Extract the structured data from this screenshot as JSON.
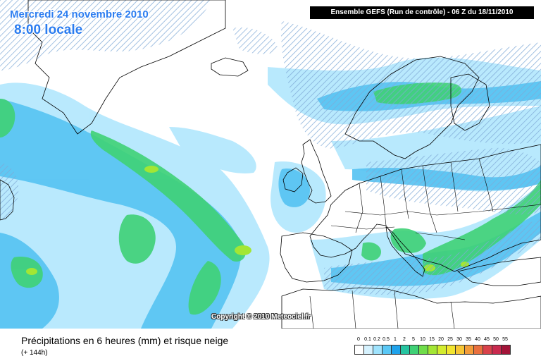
{
  "header": {
    "date": "Mercredi 24 novembre 2010",
    "time": "8:00 locale",
    "run_info": "Ensemble GEFS (Run de contrôle)  -  06 Z du 18/11/2010"
  },
  "copyright": "Copyright © 2010 Meteociel.fr",
  "footer": {
    "field_title": "Précipitations en 6 heures (mm) et risque neige",
    "lead_time": "(+ 144h)"
  },
  "legend": {
    "labels": [
      "0",
      "0.1",
      "0.2",
      "0.5",
      "1",
      "2",
      "5",
      "10",
      "15",
      "20",
      "25",
      "30",
      "35",
      "40",
      "45",
      "50",
      "55"
    ],
    "colors": [
      "#ffffff",
      "#d6f2fe",
      "#9fe3fd",
      "#5ac8f6",
      "#1fa3ec",
      "#25c4a0",
      "#3fd176",
      "#6fdd4a",
      "#a3e634",
      "#d3ec2e",
      "#f2e52f",
      "#f7c635",
      "#f39c3a",
      "#e9703e",
      "#d9424a",
      "#c92a4e",
      "#a31439"
    ]
  },
  "map": {
    "sea_color": "#ffffff",
    "land_border_color": "#000000",
    "snow_hatch_color": "#7fa9d6"
  }
}
